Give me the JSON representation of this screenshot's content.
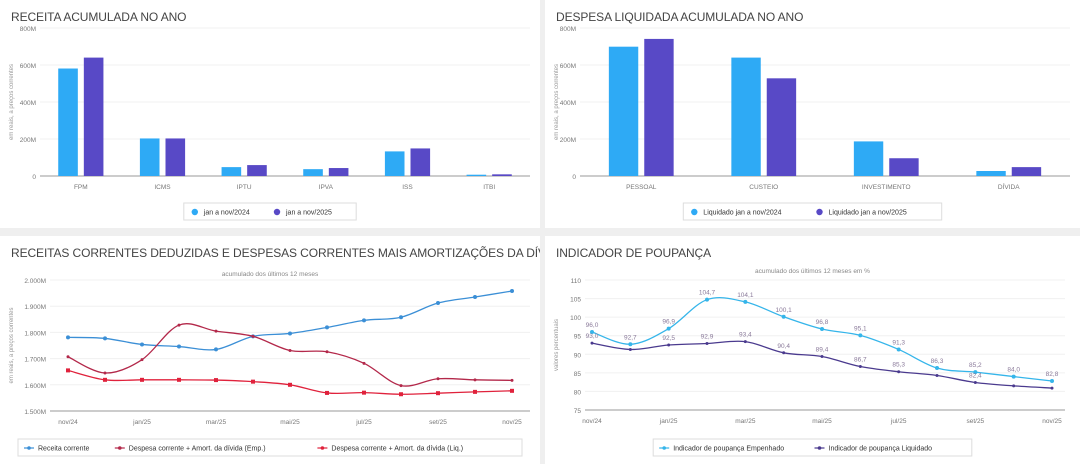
{
  "colors": {
    "light_blue": "#2eaaf5",
    "purple": "#5849c6",
    "receita": "#3b8fd6",
    "emp_red": "#b3284a",
    "liq_red": "#e0223c",
    "pou_emp": "#35b5ea",
    "pou_liq": "#4a3a8e"
  },
  "chart_data": [
    {
      "id": "receita",
      "type": "bar",
      "title": "RECEITA ACUMULADA NO ANO",
      "ylabel": "em reais, a preços correntes",
      "ylim": [
        0,
        800
      ],
      "yticks": [
        "0",
        "200M",
        "400M",
        "600M",
        "800M"
      ],
      "categories": [
        "FPM",
        "ICMS",
        "IPTU",
        "IPVA",
        "ISS",
        "ITBI"
      ],
      "series": [
        {
          "name": "jan a nov/2024",
          "color": "#2eaaf5",
          "values": [
            581,
            203,
            48,
            37,
            133,
            7
          ]
        },
        {
          "name": "jan a nov/2025",
          "color": "#5849c6",
          "values": [
            640,
            203,
            59,
            43,
            149,
            9
          ]
        }
      ],
      "legend": "bottom",
      "grid": true
    },
    {
      "id": "despesa",
      "type": "bar",
      "title": "DESPESA LIQUIDADA ACUMULADA NO ANO",
      "ylabel": "em reais, a preços correntes",
      "ylim": [
        0,
        800
      ],
      "yticks": [
        "0",
        "200M",
        "400M",
        "600M",
        "800M"
      ],
      "categories": [
        "PESSOAL",
        "CUSTEIO",
        "INVESTIMENTO",
        "DÍVIDA"
      ],
      "series": [
        {
          "name": "Liquidado jan a nov/2024",
          "color": "#2eaaf5",
          "values": [
            699,
            640,
            187,
            27
          ]
        },
        {
          "name": "Liquidado jan a nov/2025",
          "color": "#5849c6",
          "values": [
            741,
            528,
            96,
            48
          ]
        }
      ],
      "legend": "bottom",
      "grid": true
    },
    {
      "id": "correntes",
      "type": "line",
      "title": "RECEITAS CORRENTES DEDUZIDAS E DESPESAS CORRENTES MAIS AMORTIZAÇÕES DA DÍVIDA, EXCLUSIVE AS INTRAS",
      "subtitle": "acumulado dos últimos 12 meses",
      "ylabel": "em reais, a preços correntes",
      "ylim": [
        1500,
        2000
      ],
      "yticks": [
        "1.500M",
        "1.600M",
        "1.700M",
        "1.800M",
        "1.900M",
        "2.000M"
      ],
      "x": [
        "nov/24",
        "dez/24",
        "jan/25",
        "fev/25",
        "mar/25",
        "abr/25",
        "mai/25",
        "jun/25",
        "jul/25",
        "ago/25",
        "set/25",
        "out/25",
        "nov/25"
      ],
      "xticks": [
        "nov/24",
        "jan/25",
        "mar/25",
        "mai/25",
        "jul/25",
        "set/25",
        "nov/25"
      ],
      "series": [
        {
          "name": "Receita corrente",
          "color": "#3b8fd6",
          "marker": "diamond",
          "values": [
            1781,
            1777,
            1754,
            1746,
            1735,
            1785,
            1796,
            1819,
            1846,
            1858,
            1912,
            1935,
            1958
          ]
        },
        {
          "name": "Despesa corrente + Amort. da dívida (Emp.)",
          "color": "#b3284a",
          "marker": "dash",
          "values": [
            1707,
            1645,
            1696,
            1828,
            1805,
            1785,
            1731,
            1726,
            1682,
            1597,
            1623,
            1619,
            1617
          ]
        },
        {
          "name": "Despesa corrente + Amort. da dívida (Liq.)",
          "color": "#e0223c",
          "marker": "square",
          "values": [
            1655,
            1619,
            1619,
            1619,
            1618,
            1612,
            1600,
            1569,
            1570,
            1564,
            1568,
            1573,
            1577
          ]
        }
      ],
      "legend": "bottom",
      "grid": true
    },
    {
      "id": "poupanca",
      "type": "line",
      "title": "INDICADOR DE POUPANÇA",
      "subtitle": "acumulado dos últimos 12 meses em %",
      "ylabel": "valores percentuais",
      "ylim": [
        75,
        110
      ],
      "yticks": [
        "75",
        "80",
        "85",
        "90",
        "95",
        "100",
        "105",
        "110"
      ],
      "x": [
        "nov/24",
        "dez/24",
        "jan/25",
        "fev/25",
        "mar/25",
        "abr/25",
        "mai/25",
        "jun/25",
        "jul/25",
        "ago/25",
        "set/25",
        "out/25",
        "nov/25"
      ],
      "xticks": [
        "nov/24",
        "jan/25",
        "mar/25",
        "mai/25",
        "jul/25",
        "set/25",
        "nov/25"
      ],
      "series": [
        {
          "name": "Indicador de poupança Empenhado",
          "color": "#35b5ea",
          "marker": "dot",
          "values": [
            96.0,
            92.7,
            96.9,
            104.7,
            104.1,
            100.1,
            96.8,
            95.1,
            91.3,
            86.3,
            85.2,
            84.0,
            82.8
          ],
          "labels": [
            "96,0",
            "92,7",
            "96,9",
            "104,7",
            "104,1",
            "100,1",
            "96,8",
            "95,1",
            "91,3",
            "86,3",
            "85,2",
            "84,0",
            "82,8"
          ]
        },
        {
          "name": "Indicador de poupança Liquidado",
          "color": "#4a3a8e",
          "marker": "dash",
          "values": [
            93.0,
            91.3,
            92.5,
            92.9,
            93.4,
            90.4,
            89.4,
            86.7,
            85.3,
            84.3,
            82.4,
            81.5,
            80.9
          ],
          "labels": [
            "93,0",
            null,
            "92,5",
            "92,9",
            "93,4",
            "90,4",
            "89,4",
            "86,7",
            "85,3",
            null,
            "82,4",
            null,
            null
          ]
        }
      ],
      "legend": "bottom",
      "grid": true
    }
  ]
}
